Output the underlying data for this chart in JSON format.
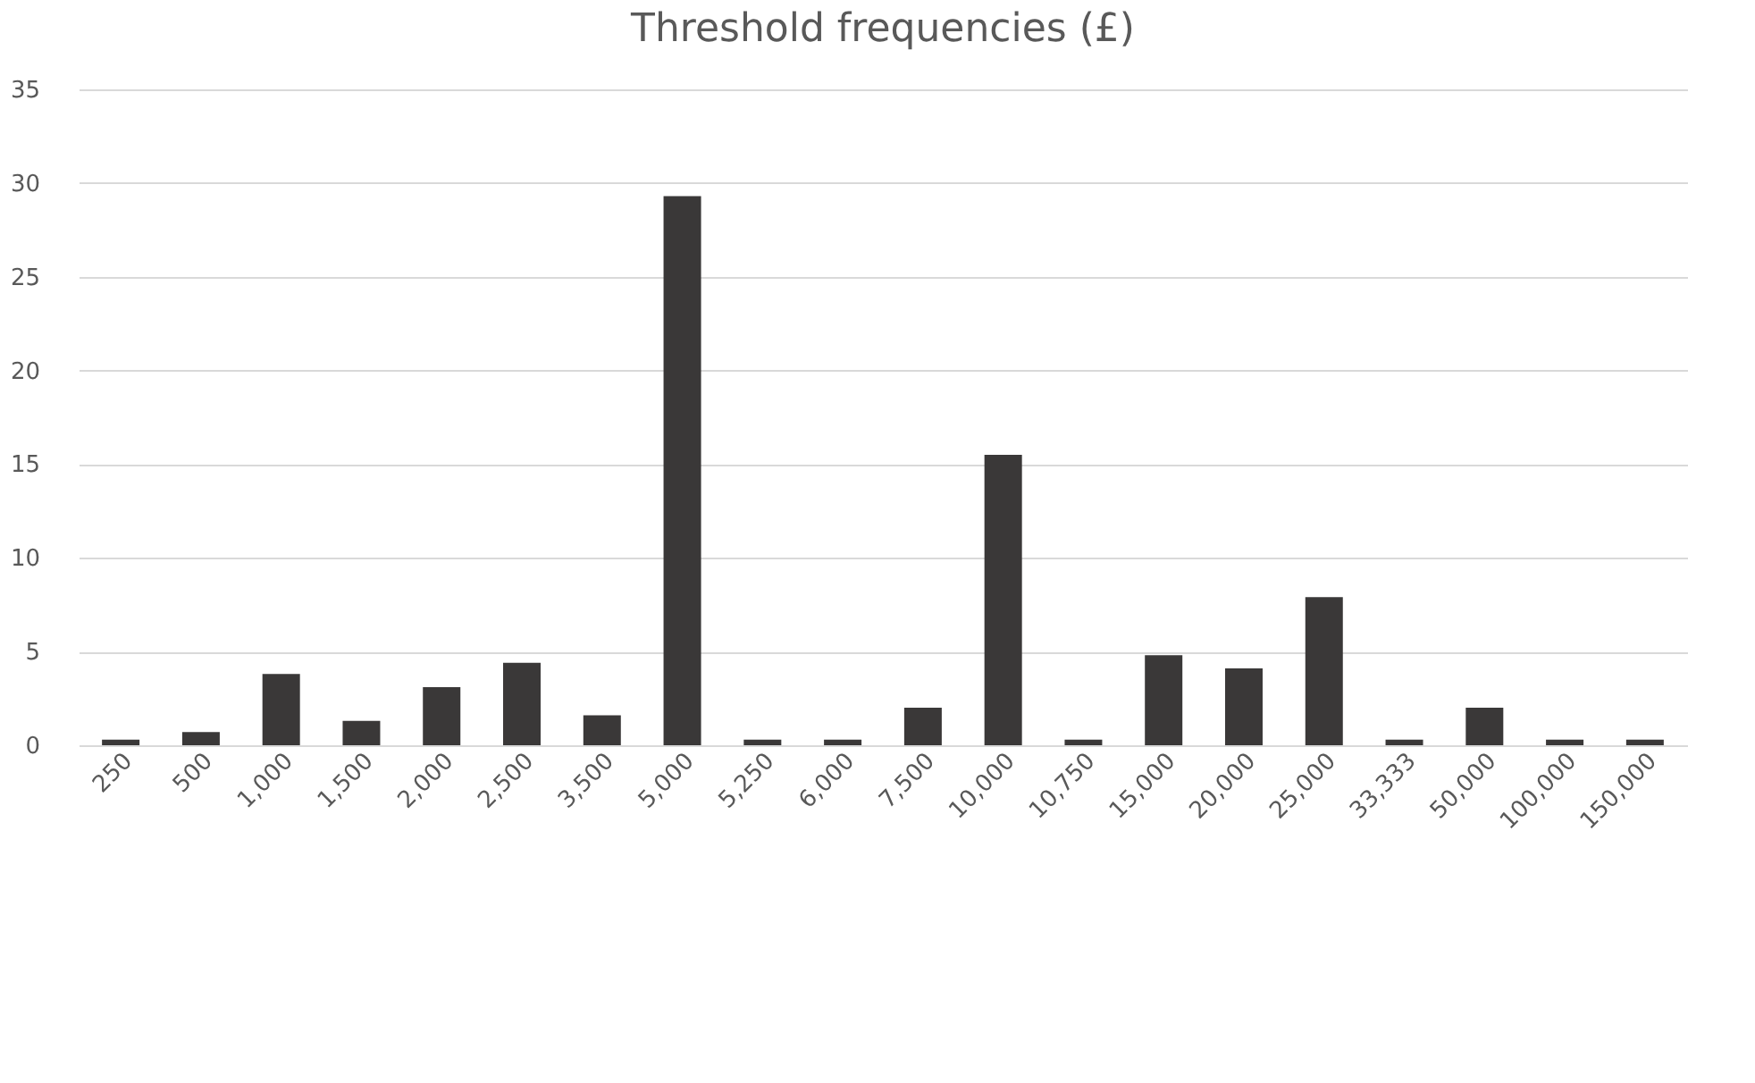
{
  "chart_data": {
    "type": "bar",
    "title": "Threshold frequencies (£)",
    "categories": [
      "250",
      "500",
      "1,000",
      "1,500",
      "2,000",
      "2,500",
      "3,500",
      "5,000",
      "5,250",
      "6,000",
      "7,500",
      "10,000",
      "10,750",
      "15,000",
      "20,000",
      "25,000",
      "33,333",
      "50,000",
      "100,000",
      "150,000"
    ],
    "values": [
      0.3,
      0.7,
      3.8,
      1.3,
      3.1,
      4.4,
      1.6,
      29.3,
      0.3,
      0.3,
      2.0,
      15.5,
      0.3,
      4.8,
      4.1,
      7.9,
      0.3,
      2.0,
      0.3,
      0.3
    ],
    "color": "#3a3838",
    "ylim": [
      0,
      35
    ],
    "yticks": [
      0,
      5,
      10,
      15,
      20,
      25,
      30,
      35
    ],
    "grid": "y"
  }
}
